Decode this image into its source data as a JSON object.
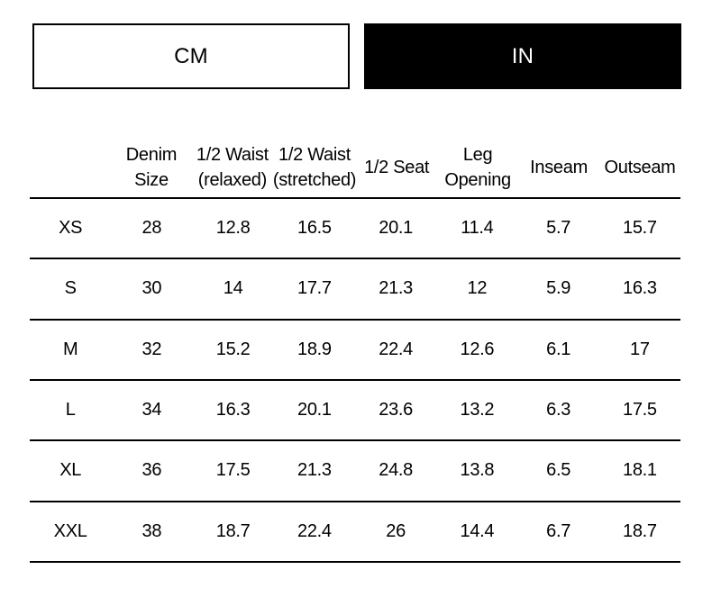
{
  "units": {
    "cm_label": "CM",
    "in_label": "IN",
    "selected": "IN"
  },
  "colors": {
    "selected_button_bg": "#000000",
    "selected_button_text": "#ffffff",
    "unselected_button_bg": "#ffffff",
    "unselected_button_text": "#000000",
    "table_line": "#000000",
    "background": "#ffffff"
  },
  "table": {
    "columns": [
      "",
      "Denim\nSize",
      "1/2 Waist\n(relaxed)",
      "1/2 Waist\n(stretched)",
      "1/2 Seat",
      "Leg\nOpening",
      "Inseam",
      "Outseam"
    ],
    "rows": [
      {
        "size": "XS",
        "values": [
          "28",
          "12.8",
          "16.5",
          "20.1",
          "11.4",
          "5.7",
          "15.7"
        ]
      },
      {
        "size": "S",
        "values": [
          "30",
          "14",
          "17.7",
          "21.3",
          "12",
          "5.9",
          "16.3"
        ]
      },
      {
        "size": "M",
        "values": [
          "32",
          "15.2",
          "18.9",
          "22.4",
          "12.6",
          "6.1",
          "17"
        ]
      },
      {
        "size": "L",
        "values": [
          "34",
          "16.3",
          "20.1",
          "23.6",
          "13.2",
          "6.3",
          "17.5"
        ]
      },
      {
        "size": "XL",
        "values": [
          "36",
          "17.5",
          "21.3",
          "24.8",
          "13.8",
          "6.5",
          "18.1"
        ]
      },
      {
        "size": "XXL",
        "values": [
          "38",
          "18.7",
          "22.4",
          "26",
          "14.4",
          "6.7",
          "18.7"
        ]
      }
    ]
  }
}
